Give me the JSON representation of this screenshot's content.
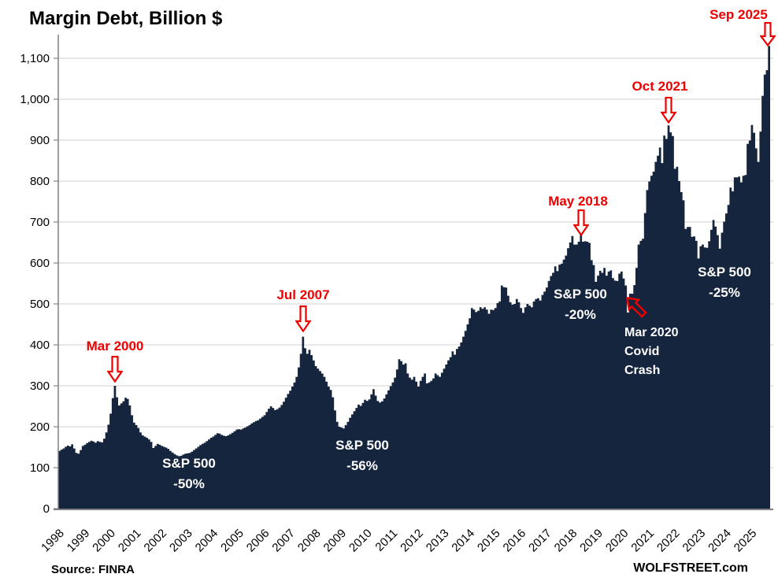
{
  "title": "Margin Debt, Billion $",
  "footer": {
    "source": "Source: FINRA",
    "brand": "WOLFSTREET.com"
  },
  "colors": {
    "bars": "#15253d",
    "gridline": "#d9d9d9",
    "axis": "#808080",
    "annotation_red": "#ee0000",
    "annotation_white": "#ffffff",
    "text": "#000000"
  },
  "annotations": {
    "peaks": [
      {
        "label": "Mar 2000",
        "month": "2000-03",
        "value": 300
      },
      {
        "label": "Jul 2007",
        "month": "2007-07",
        "value": 420
      },
      {
        "label": "May 2018",
        "month": "2018-05",
        "value": 669
      },
      {
        "label": "Oct 2021",
        "month": "2021-10",
        "value": 936
      },
      {
        "label": "Sep 2025",
        "month": "2025-09",
        "value": 1130
      }
    ],
    "drawdowns": [
      {
        "line1": "S&P 500",
        "line2": "-50%"
      },
      {
        "line1": "S&P 500",
        "line2": "-56%"
      },
      {
        "line1": "S&P 500",
        "line2": "-20%"
      },
      {
        "line1": "S&P 500",
        "line2": "-25%"
      }
    ],
    "covid": {
      "line1": "Mar 2020",
      "line2": "Covid",
      "line3": "Crash"
    }
  },
  "chart_data": {
    "type": "bar",
    "title": "Margin Debt, Billion $",
    "unit": "billion USD",
    "frequency": "monthly",
    "x_start": "1998-01",
    "x_end": "2025-09",
    "x_tick_labels": [
      "1998",
      "1999",
      "2000",
      "2001",
      "2002",
      "2003",
      "2004",
      "2005",
      "2006",
      "2007",
      "2008",
      "2009",
      "2010",
      "2011",
      "2012",
      "2013",
      "2014",
      "2015",
      "2016",
      "2017",
      "2018",
      "2019",
      "2020",
      "2021",
      "2022",
      "2023",
      "2024",
      "2025"
    ],
    "y_ticks": [
      0,
      100,
      200,
      300,
      400,
      500,
      600,
      700,
      800,
      900,
      1000,
      1100
    ],
    "y_tick_labels": [
      "0",
      "100",
      "200",
      "300",
      "400",
      "500",
      "600",
      "700",
      "800",
      "900",
      "1,000",
      "1,100"
    ],
    "ylim": [
      0,
      1150
    ],
    "grid": "horizontal",
    "legend": "none",
    "series": [
      {
        "name": "Margin debt",
        "values": [
          141,
          144,
          147,
          151,
          154,
          152,
          157,
          147,
          136,
          134,
          143,
          153,
          156,
          160,
          163,
          166,
          164,
          161,
          165,
          163,
          162,
          171,
          186,
          205,
          232,
          270,
          300,
          272,
          252,
          257,
          262,
          271,
          268,
          252,
          228,
          210,
          204,
          197,
          186,
          179,
          176,
          173,
          169,
          163,
          148,
          153,
          158,
          156,
          153,
          151,
          149,
          146,
          141,
          137,
          133,
          130,
          128,
          129,
          132,
          134,
          135,
          136,
          139,
          143,
          147,
          151,
          155,
          158,
          161,
          165,
          169,
          173,
          176,
          180,
          184,
          183,
          180,
          178,
          177,
          179,
          182,
          185,
          189,
          193,
          194,
          193,
          196,
          198,
          201,
          204,
          208,
          211,
          214,
          216,
          220,
          224,
          228,
          236,
          244,
          250,
          246,
          241,
          243,
          247,
          253,
          261,
          271,
          280,
          288,
          298,
          308,
          322,
          345,
          378,
          420,
          392,
          378,
          388,
          375,
          362,
          348,
          342,
          336,
          330,
          322,
          310,
          298,
          290,
          272,
          240,
          212,
          200,
          198,
          196,
          204,
          212,
          222,
          230,
          238,
          246,
          254,
          251,
          258,
          266,
          263,
          267,
          279,
          292,
          276,
          263,
          259,
          262,
          269,
          279,
          289,
          299,
          308,
          320,
          340,
          365,
          360,
          352,
          355,
          330,
          320,
          315,
          322,
          310,
          298,
          312,
          322,
          330,
          306,
          308,
          312,
          318,
          330,
          326,
          322,
          332,
          342,
          352,
          362,
          370,
          384,
          376,
          390,
          396,
          406,
          420,
          434,
          450,
          465,
          490,
          486,
          480,
          483,
          492,
          488,
          492,
          486,
          476,
          486,
          485,
          490,
          502,
          506,
          545,
          541,
          540,
          520,
          504,
          498,
          500,
          512,
          504,
          490,
          478,
          492,
          500,
          496,
          492,
          506,
          512,
          514,
          508,
          522,
          530,
          540,
          556,
          568,
          576,
          592,
          580,
          596,
          598,
          608,
          618,
          636,
          650,
          666,
          645,
          645,
          652,
          669,
          652,
          653,
          652,
          649,
          607,
          595,
          554,
          569,
          581,
          576,
          588,
          569,
          579,
          582,
          563,
          557,
          556,
          574,
          579,
          562,
          545,
          479,
          525,
          525,
          546,
          588,
          645,
          654,
          659,
          722,
          778,
          799,
          813,
          823,
          847,
          862,
          882,
          844,
          911,
          903,
          936,
          919,
          910,
          830,
          835,
          800,
          773,
          753,
          683,
          688,
          688,
          664,
          665,
          654,
          611,
          641,
          645,
          638,
          637,
          653,
          681,
          705,
          689,
          668,
          635,
          674,
          701,
          721,
          742,
          784,
          775,
          809,
          809,
          811,
          797,
          813,
          815,
          891,
          899,
          937,
          918,
          880,
          847,
          921,
          1008,
          1060,
          1071,
          1130
        ]
      }
    ]
  }
}
